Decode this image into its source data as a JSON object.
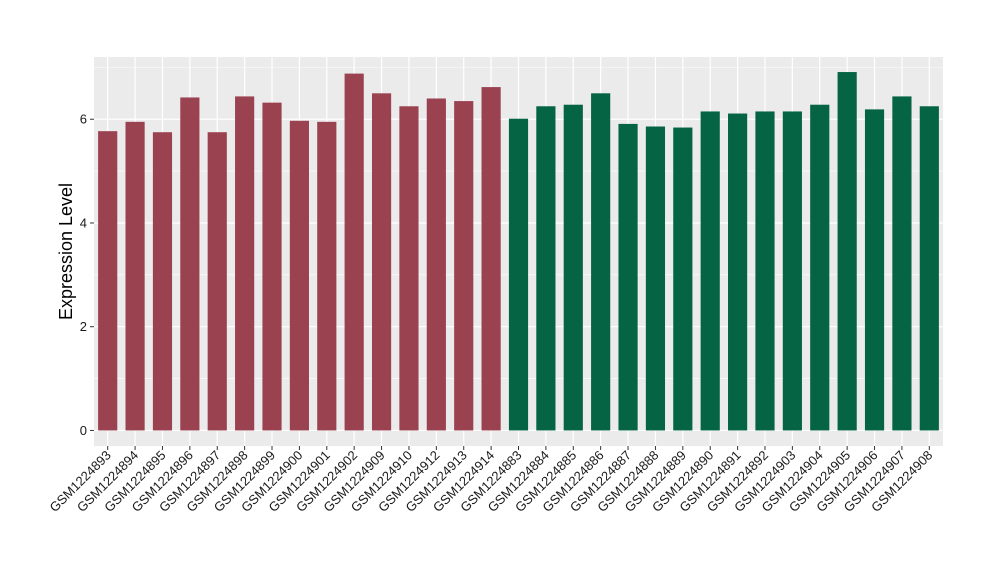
{
  "chart_data": {
    "type": "bar",
    "ylabel": "Expression Level",
    "xlabel": "",
    "ylim": [
      -0.3,
      7.2
    ],
    "yticks": [
      0,
      2,
      4,
      6
    ],
    "grid": true,
    "colors": {
      "group1": "#9b4250",
      "group2": "#046444",
      "panel": "#ebebeb",
      "grid": "#ffffff"
    },
    "categories": [
      "GSM1224893",
      "GSM1224894",
      "GSM1224895",
      "GSM1224896",
      "GSM1224897",
      "GSM1224898",
      "GSM1224899",
      "GSM1224900",
      "GSM1224901",
      "GSM1224902",
      "GSM1224909",
      "GSM1224910",
      "GSM1224912",
      "GSM1224913",
      "GSM1224914",
      "GSM1224883",
      "GSM1224884",
      "GSM1224885",
      "GSM1224886",
      "GSM1224887",
      "GSM1224888",
      "GSM1224889",
      "GSM1224890",
      "GSM1224891",
      "GSM1224892",
      "GSM1224903",
      "GSM1224904",
      "GSM1224905",
      "GSM1224906",
      "GSM1224907",
      "GSM1224908"
    ],
    "values": [
      5.77,
      5.95,
      5.75,
      6.42,
      5.75,
      6.44,
      6.32,
      5.97,
      5.95,
      6.88,
      6.5,
      6.25,
      6.4,
      6.35,
      6.62,
      6.01,
      6.25,
      6.28,
      6.5,
      5.91,
      5.86,
      5.84,
      6.15,
      6.11,
      6.15,
      6.15,
      6.28,
      6.91,
      6.19,
      6.44,
      6.25
    ],
    "group": [
      1,
      1,
      1,
      1,
      1,
      1,
      1,
      1,
      1,
      1,
      1,
      1,
      1,
      1,
      1,
      2,
      2,
      2,
      2,
      2,
      2,
      2,
      2,
      2,
      2,
      2,
      2,
      2,
      2,
      2,
      2
    ]
  }
}
